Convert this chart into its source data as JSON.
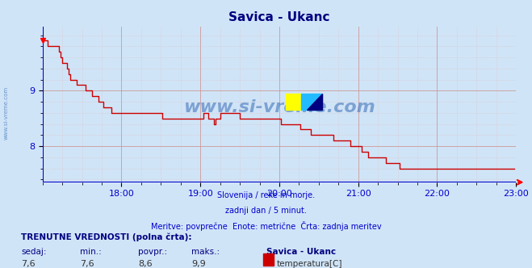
{
  "title": "Savica - Ukanc",
  "title_color": "#000080",
  "bg_color": "#d0e4f7",
  "plot_bg_color": "#d0e4f7",
  "line_color": "#cc0000",
  "axis_color": "#0000cc",
  "watermark_color": "#4477bb",
  "watermark_text": "www.si-vreme.com",
  "side_watermark": "www.si-vreme.com",
  "subtitle_lines": [
    "Slovenija / reke in morje.",
    "zadnji dan / 5 minut.",
    "Meritve: povprečne  Enote: metrične  Črta: zadnja meritev"
  ],
  "footer_label": "TRENUTNE VREDNOSTI (polna črta):",
  "footer_cols": [
    "sedaj:",
    "min.:",
    "povpr.:",
    "maks.:"
  ],
  "footer_vals": [
    "7,6",
    "7,6",
    "8,6",
    "9,9"
  ],
  "legend_station": "Savica - Ukanc",
  "legend_series": "temperatura[C]",
  "legend_color": "#cc0000",
  "xlabel_times": [
    "18:00",
    "19:00",
    "20:00",
    "21:00",
    "22:00",
    "23:00"
  ],
  "ytick_vals": [
    8,
    9
  ],
  "ylim_min": 7.35,
  "ylim_max": 10.15,
  "xlim_min": 0,
  "xlim_max": 288,
  "x_tick_positions": [
    48,
    96,
    144,
    192,
    240,
    288
  ],
  "grid_major_color": "#cc9999",
  "grid_minor_color": "#ddbbbb",
  "temp_data": [
    9.9,
    9.9,
    9.9,
    9.8,
    9.8,
    9.8,
    9.8,
    9.8,
    9.8,
    9.8,
    9.7,
    9.6,
    9.5,
    9.5,
    9.5,
    9.4,
    9.3,
    9.2,
    9.2,
    9.2,
    9.2,
    9.1,
    9.1,
    9.1,
    9.1,
    9.1,
    9.0,
    9.0,
    9.0,
    9.0,
    8.9,
    8.9,
    8.9,
    8.9,
    8.8,
    8.8,
    8.8,
    8.7,
    8.7,
    8.7,
    8.7,
    8.7,
    8.6,
    8.6,
    8.6,
    8.6,
    8.6,
    8.6,
    8.6,
    8.6,
    8.6,
    8.6,
    8.6,
    8.6,
    8.6,
    8.6,
    8.6,
    8.6,
    8.6,
    8.6,
    8.6,
    8.6,
    8.6,
    8.6,
    8.6,
    8.6,
    8.6,
    8.6,
    8.6,
    8.6,
    8.6,
    8.6,
    8.6,
    8.5,
    8.5,
    8.5,
    8.5,
    8.5,
    8.5,
    8.5,
    8.5,
    8.5,
    8.5,
    8.5,
    8.5,
    8.5,
    8.5,
    8.5,
    8.5,
    8.5,
    8.5,
    8.5,
    8.5,
    8.5,
    8.5,
    8.5,
    8.5,
    8.5,
    8.6,
    8.6,
    8.6,
    8.5,
    8.5,
    8.5,
    8.4,
    8.5,
    8.5,
    8.5,
    8.6,
    8.6,
    8.6,
    8.6,
    8.6,
    8.6,
    8.6,
    8.6,
    8.6,
    8.6,
    8.6,
    8.6,
    8.5,
    8.5,
    8.5,
    8.5,
    8.5,
    8.5,
    8.5,
    8.5,
    8.5,
    8.5,
    8.5,
    8.5,
    8.5,
    8.5,
    8.5,
    8.5,
    8.5,
    8.5,
    8.5,
    8.5,
    8.5,
    8.5,
    8.5,
    8.5,
    8.5,
    8.4,
    8.4,
    8.4,
    8.4,
    8.4,
    8.4,
    8.4,
    8.4,
    8.4,
    8.4,
    8.4,
    8.4,
    8.3,
    8.3,
    8.3,
    8.3,
    8.3,
    8.3,
    8.2,
    8.2,
    8.2,
    8.2,
    8.2,
    8.2,
    8.2,
    8.2,
    8.2,
    8.2,
    8.2,
    8.2,
    8.2,
    8.2,
    8.1,
    8.1,
    8.1,
    8.1,
    8.1,
    8.1,
    8.1,
    8.1,
    8.1,
    8.1,
    8.0,
    8.0,
    8.0,
    8.0,
    8.0,
    8.0,
    8.0,
    7.9,
    7.9,
    7.9,
    7.9,
    7.8,
    7.8,
    7.8,
    7.8,
    7.8,
    7.8,
    7.8,
    7.8,
    7.8,
    7.8,
    7.8,
    7.7,
    7.7,
    7.7,
    7.7,
    7.7,
    7.7,
    7.7,
    7.7,
    7.6,
    7.6,
    7.6,
    7.6,
    7.6,
    7.6,
    7.6,
    7.6,
    7.6,
    7.6,
    7.6,
    7.6,
    7.6,
    7.6,
    7.6,
    7.6,
    7.6,
    7.6,
    7.6,
    7.6,
    7.6,
    7.6,
    7.6,
    7.6,
    7.6,
    7.6,
    7.6,
    7.6,
    7.6,
    7.6,
    7.6,
    7.6,
    7.6,
    7.6,
    7.6,
    7.6,
    7.6,
    7.6,
    7.6,
    7.6,
    7.6,
    7.6,
    7.6,
    7.6,
    7.6,
    7.6,
    7.6,
    7.6,
    7.6,
    7.6,
    7.6,
    7.6,
    7.6,
    7.6,
    7.6,
    7.6,
    7.6,
    7.6,
    7.6,
    7.6,
    7.6,
    7.6,
    7.6,
    7.6,
    7.6,
    7.6,
    7.6,
    7.6,
    7.6,
    7.6,
    7.6
  ]
}
